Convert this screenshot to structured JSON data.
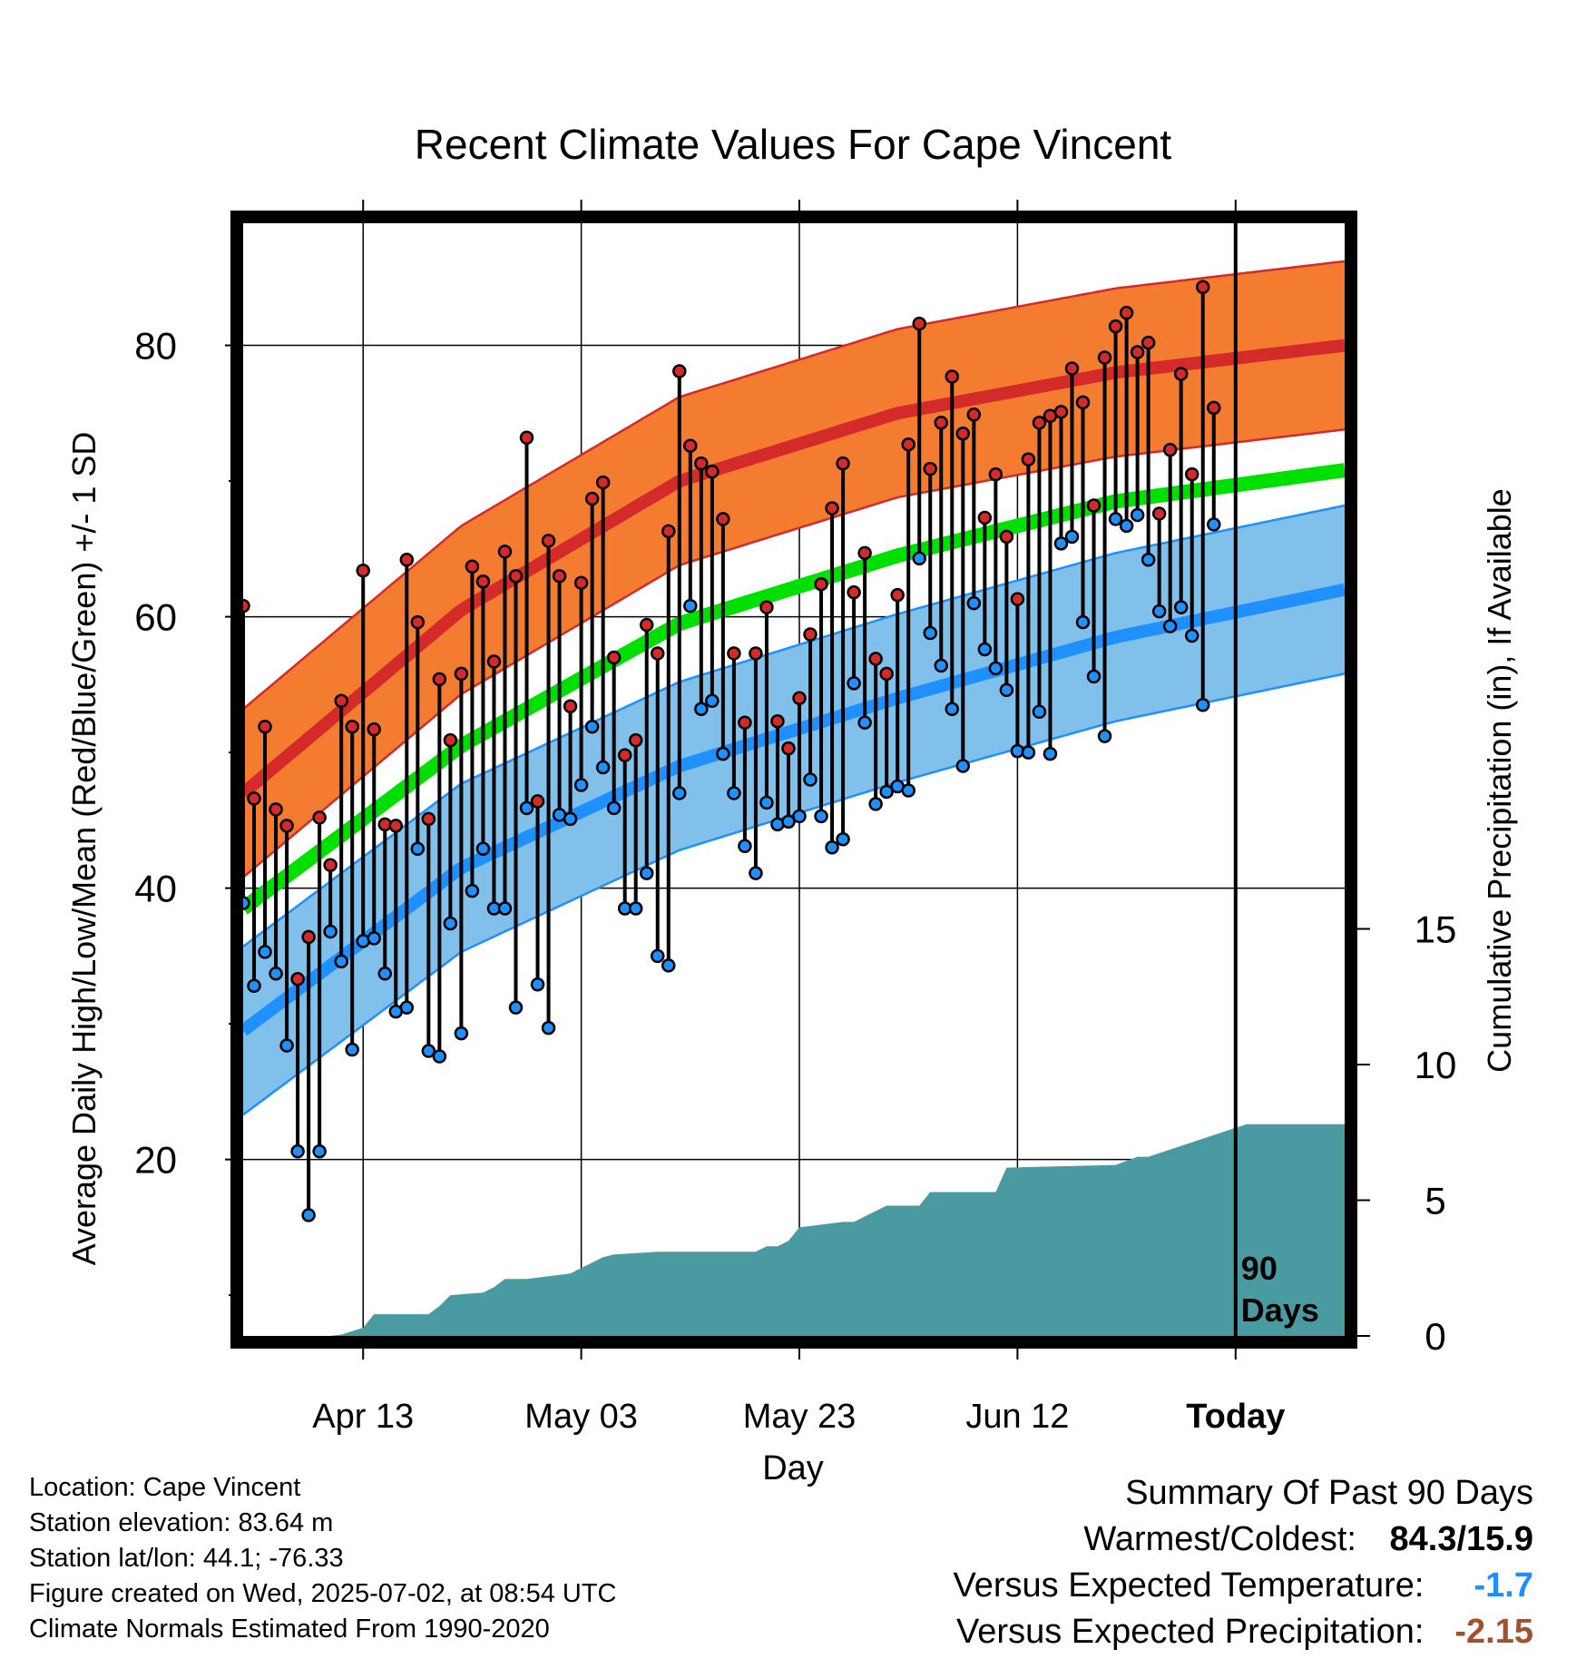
{
  "chart_data": {
    "type": "line",
    "title": "Recent Climate Values For Cape Vincent",
    "xlabel": "Day",
    "ylabel": "Average Daily High/Low/Mean (Red/Blue/Green) +/- 1 SD",
    "y2label": "Cumulative Precipitation (in), If Available",
    "x_ticks": [
      "Apr 13",
      "May 03",
      "May 23",
      "Jun 12",
      "Today"
    ],
    "x_tick_day_index": [
      11,
      31,
      51,
      71,
      91
    ],
    "xlim_day_index": [
      0,
      101
    ],
    "ylim": [
      7,
      89
    ],
    "y_ticks": [
      20,
      40,
      60,
      80
    ],
    "y2lim": [
      0,
      41
    ],
    "y2_ticks": [
      0,
      5,
      10,
      15
    ],
    "grid": true,
    "today_label": "90\nDays",
    "normal_high": {
      "day": [
        0,
        20,
        40,
        60,
        80,
        101
      ],
      "mean": [
        47.0,
        60.5,
        70.0,
        75.0,
        78.0,
        80.0
      ],
      "sd": 6.2
    },
    "normal_low": {
      "day": [
        0,
        20,
        40,
        60,
        80,
        101
      ],
      "mean": [
        29.5,
        41.5,
        49.0,
        54.0,
        58.5,
        62.0
      ],
      "sd": 6.2
    },
    "normal_mean": {
      "day": [
        0,
        20,
        40,
        60,
        80,
        101
      ],
      "values": [
        38.5,
        50.5,
        59.5,
        64.5,
        68.5,
        70.8
      ]
    },
    "series": [
      {
        "name": "High",
        "values": [
          60.8,
          46.6,
          51.9,
          45.8,
          44.6,
          33.3,
          36.4,
          45.2,
          41.7,
          53.8,
          51.9,
          63.4,
          51.7,
          44.7,
          44.6,
          64.2,
          59.6,
          45.1,
          55.4,
          50.9,
          55.8,
          63.7,
          62.6,
          56.7,
          64.8,
          63.0,
          73.2,
          46.4,
          65.6,
          63.0,
          53.4,
          62.5,
          68.7,
          69.9,
          57.0,
          49.8,
          50.9,
          59.4,
          57.3,
          66.3,
          78.1,
          72.6,
          71.3,
          70.7,
          67.2,
          57.3,
          52.2,
          57.3,
          60.7,
          52.3,
          50.3,
          54.0,
          58.7,
          62.4,
          68.0,
          71.3,
          61.8,
          64.7,
          56.9,
          55.8,
          61.6,
          72.7,
          81.6,
          70.9,
          74.3,
          77.7,
          73.5,
          74.9,
          67.3,
          70.5,
          65.9,
          61.3,
          71.6,
          74.3,
          74.8,
          75.1,
          78.3,
          75.8,
          68.2,
          79.1,
          81.4,
          82.4,
          79.5,
          80.2,
          67.6,
          72.3,
          77.9,
          70.5,
          84.3,
          75.4
        ]
      },
      {
        "name": "Low",
        "values": [
          38.9,
          32.8,
          35.3,
          33.7,
          28.4,
          20.6,
          15.9,
          20.6,
          36.8,
          34.6,
          28.1,
          36.1,
          36.3,
          33.7,
          30.9,
          31.2,
          42.9,
          28.0,
          27.6,
          37.4,
          29.3,
          39.8,
          42.9,
          38.5,
          38.5,
          31.2,
          45.9,
          32.9,
          29.7,
          45.4,
          45.1,
          47.6,
          51.9,
          48.9,
          45.9,
          38.5,
          38.5,
          41.1,
          35.0,
          34.3,
          47.0,
          60.8,
          53.2,
          53.8,
          49.9,
          47.0,
          43.1,
          41.1,
          46.3,
          44.7,
          44.9,
          45.3,
          48.0,
          45.3,
          43.0,
          43.6,
          55.1,
          52.2,
          46.2,
          47.1,
          47.5,
          47.2,
          64.3,
          58.8,
          56.4,
          53.2,
          49.0,
          61.0,
          57.6,
          56.2,
          54.6,
          50.1,
          50.0,
          53.0,
          49.9,
          65.4,
          65.9,
          59.6,
          55.6,
          51.2,
          67.2,
          66.7,
          67.5,
          64.2,
          60.4,
          59.3,
          60.7,
          58.6,
          53.5,
          66.8
        ]
      }
    ],
    "precip_cumulative": {
      "day": [
        0,
        8,
        9,
        11,
        12,
        17,
        18,
        19,
        22,
        23,
        24,
        26,
        30,
        33,
        34,
        38,
        47,
        48,
        49,
        50,
        51,
        55,
        56,
        58,
        59,
        62,
        63,
        69,
        70,
        80,
        82,
        83,
        92,
        101
      ],
      "values": [
        0,
        0,
        0.05,
        0.3,
        0.8,
        0.8,
        1.1,
        1.5,
        1.6,
        1.8,
        2.1,
        2.1,
        2.3,
        2.9,
        3.0,
        3.1,
        3.1,
        3.3,
        3.3,
        3.5,
        4.0,
        4.2,
        4.2,
        4.6,
        4.8,
        4.8,
        5.3,
        5.3,
        6.2,
        6.3,
        6.6,
        6.6,
        7.8,
        7.8
      ]
    }
  },
  "footer": {
    "location": "Location: Cape Vincent",
    "elevation": "Station elevation: 83.64 m",
    "latlon": "Station lat/lon: 44.1; -76.33",
    "created": "Figure created on Wed, 2025-07-02, at 08:54 UTC",
    "normals": "Climate Normals Estimated From 1990-2020"
  },
  "summary": {
    "title": "Summary Of Past 90 Days",
    "warm_label": "Warmest/Coldest:",
    "warm_value": "84.3/15.9",
    "temp_label": "Versus Expected Temperature:",
    "temp_value": "-1.7",
    "temp_color": "#1f8fff",
    "precip_label": "Versus Expected Precipitation:",
    "precip_value": "-2.15",
    "precip_color": "#a0522d"
  },
  "colors": {
    "high_band": "#f47c30",
    "high_line": "#d42a2a",
    "low_band": "#80c0ea",
    "low_line": "#1e90ff",
    "mean_line": "#00e000",
    "precip_fill": "#4a9aa2",
    "high_dot": "#d42a2a",
    "low_dot": "#1e90ff"
  }
}
